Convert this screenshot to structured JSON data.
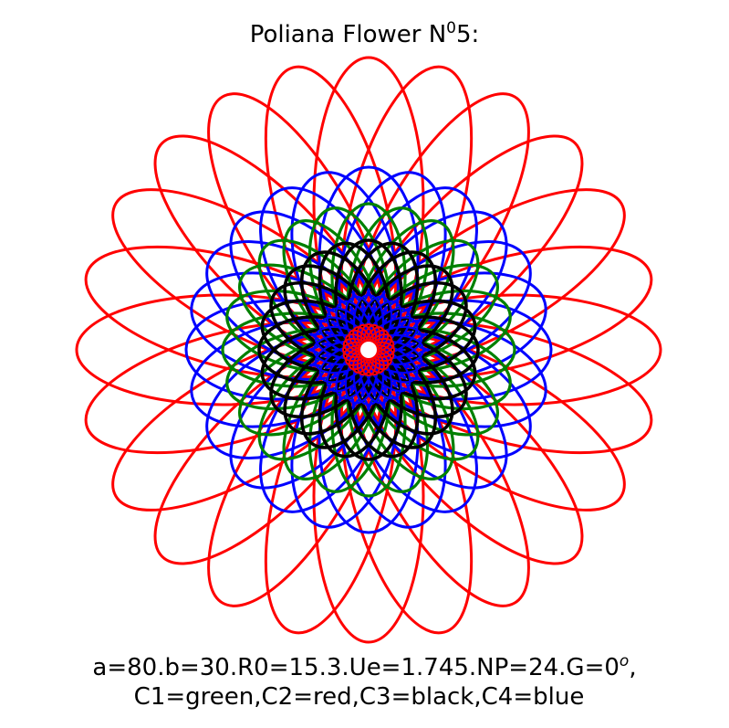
{
  "title": {
    "main": "Poliana Flower N",
    "superscript": "0",
    "suffix": "5:"
  },
  "caption": {
    "line1_main": "a=80.b=30.R0=15.3.Ue=1.745.NP=24.G=0",
    "line1_superscript": "o",
    "line1_suffix": ",",
    "line2": "C1=green,C2=red,C3=black,C4=blue"
  },
  "colors": {
    "C1": "#008000",
    "C2": "#ff0000",
    "C3": "#000000",
    "C4": "#0000ff",
    "background": "#ffffff"
  },
  "flower": {
    "petal_count": 24,
    "layers": [
      {
        "name": "red-outer-petals",
        "color": "#ff0000",
        "a": 80,
        "b": 30
      },
      {
        "name": "blue-ellipses",
        "color": "#0000ff",
        "a": 50,
        "b": 27
      },
      {
        "name": "green-ellipses",
        "color": "#008000",
        "a": 40,
        "b": 20
      },
      {
        "name": "black-ellipses",
        "color": "#000000",
        "a": 30,
        "b": 18
      },
      {
        "name": "blue-inner-ellipses",
        "color": "#0000ff",
        "a": 15,
        "b": 8
      },
      {
        "name": "red-core-ellipses",
        "color": "#ff0000",
        "a": 7,
        "b": 4
      }
    ]
  }
}
